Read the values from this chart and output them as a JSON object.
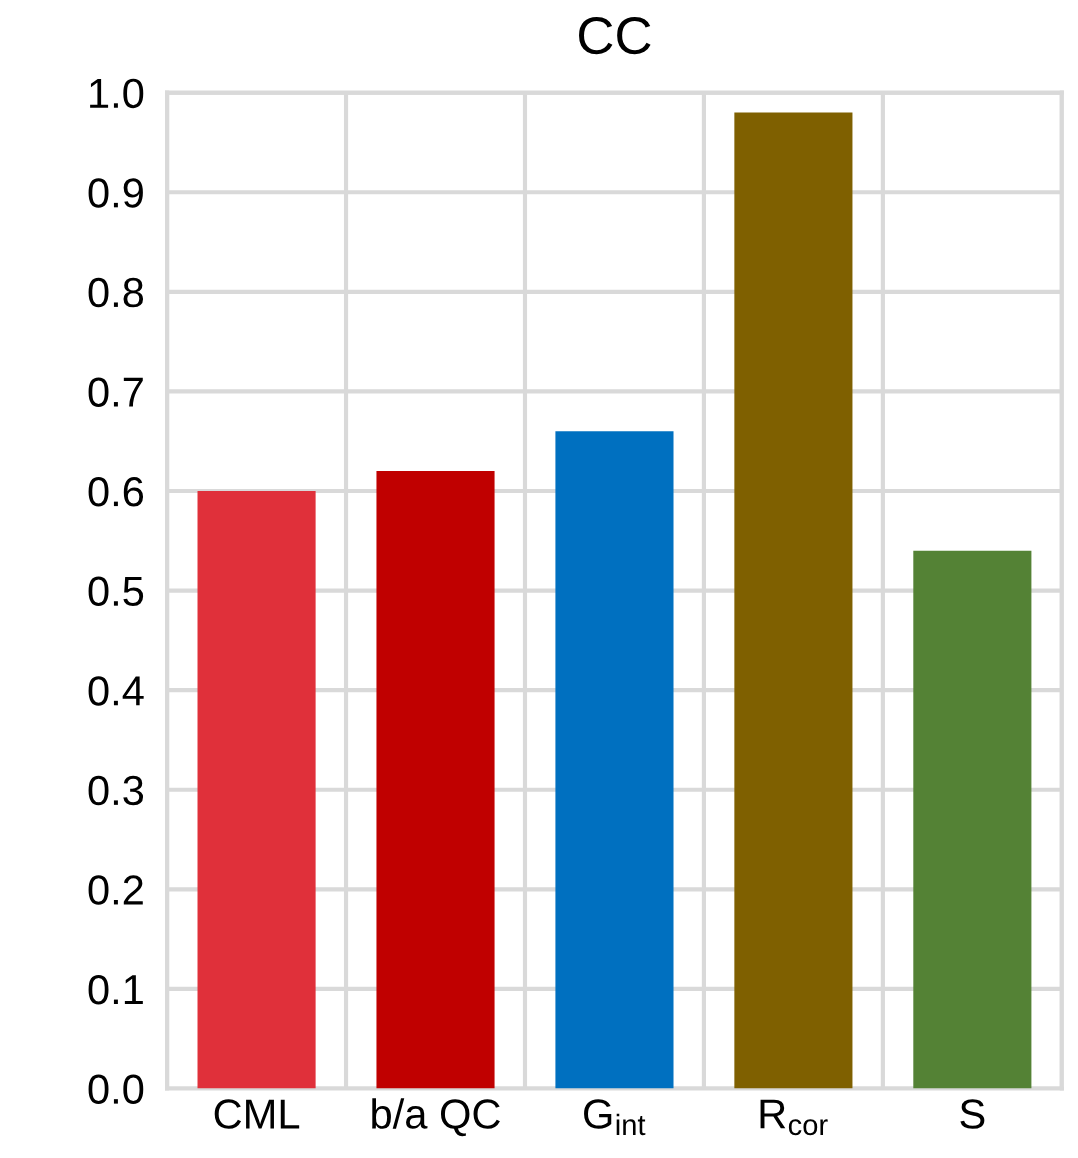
{
  "chart_data": {
    "type": "bar",
    "title": "CC",
    "categories": [
      "CML",
      "b/a QC",
      "G$_{int}$",
      "R$_{cor}$",
      "S"
    ],
    "values": [
      0.6,
      0.62,
      0.66,
      0.98,
      0.54
    ],
    "colors": [
      "#e0303a",
      "#c00000",
      "#0070c0",
      "#7f6000",
      "#548235"
    ],
    "ylim": [
      0,
      1.0
    ],
    "yticks": [
      {
        "value": 0,
        "label": "0.0"
      },
      0.1,
      0.2,
      0.3,
      0.4,
      0.5,
      0.6,
      0.7,
      0.8,
      0.9,
      {
        "value": 1.0,
        "label": "1.0"
      }
    ],
    "grid": true
  }
}
